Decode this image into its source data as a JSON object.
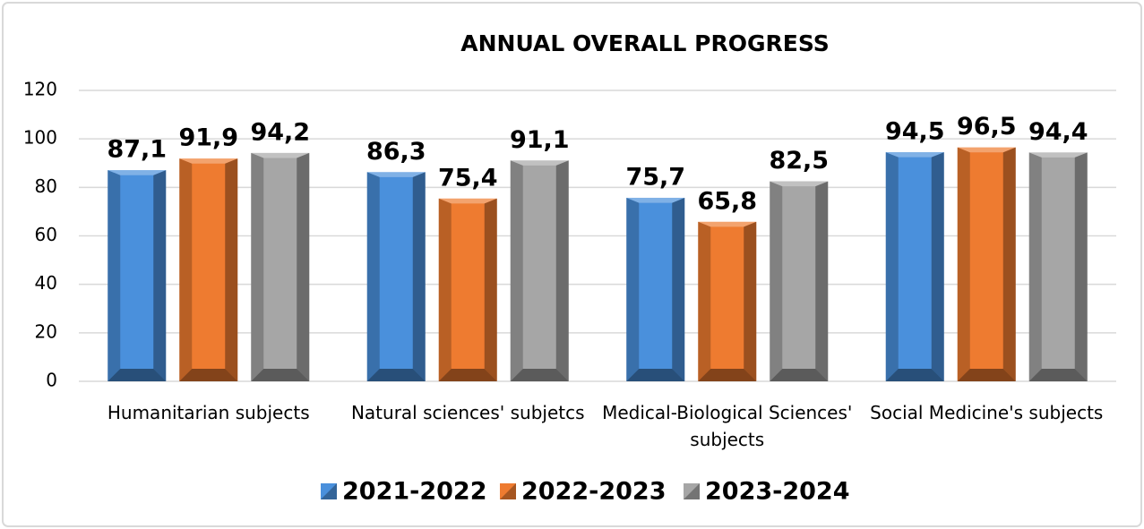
{
  "chart_data": {
    "type": "bar",
    "title": "ANNUAL OVERALL PROGRESS",
    "categories": [
      "Humanitarian subjects",
      "Natural sciences' subjetcs",
      "Medical-Biological Sciences' subjects",
      "Social Medicine's subjects"
    ],
    "series": [
      {
        "name": "2021-2022",
        "color": "#4a90dc",
        "values": [
          87.1,
          86.3,
          75.7,
          94.5
        ],
        "value_labels": [
          "87,1",
          "86,3",
          "75,7",
          "94,5"
        ]
      },
      {
        "name": "2022-2023",
        "color": "#ee7b30",
        "values": [
          91.9,
          75.4,
          65.8,
          96.5
        ],
        "value_labels": [
          "91,9",
          "75,4",
          "65,8",
          "96,5"
        ]
      },
      {
        "name": "2023-2024",
        "color": "#a6a6a6",
        "values": [
          94.2,
          91.1,
          82.5,
          94.4
        ],
        "value_labels": [
          "94,2",
          "91,1",
          "82,5",
          "94,4"
        ]
      }
    ],
    "ylim": [
      0,
      120
    ],
    "yticks": [
      0,
      20,
      40,
      60,
      80,
      100,
      120
    ],
    "grid": true,
    "legend": "bottom"
  }
}
